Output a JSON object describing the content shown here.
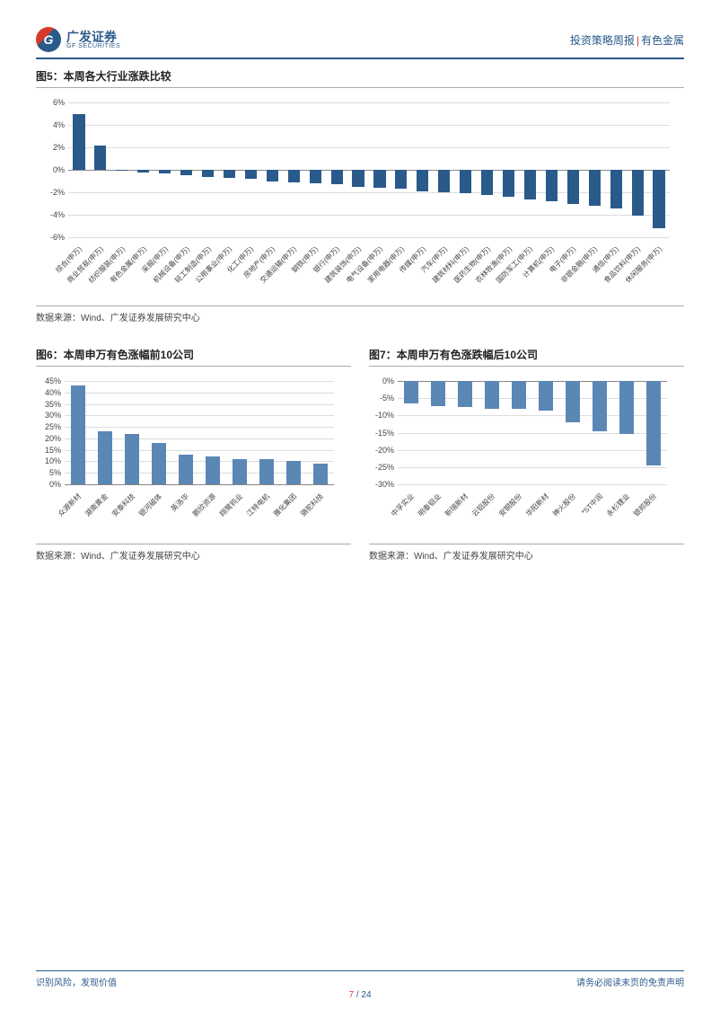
{
  "header": {
    "logo_cn": "广发证券",
    "logo_en": "GF SECURITIES",
    "logo_letter": "G",
    "right_1": "投资策略周报",
    "right_2": "有色金属"
  },
  "chart5": {
    "title": "图5：本周各大行业涨跌比较",
    "type": "bar",
    "ylim": [
      -6,
      6
    ],
    "ytick_step": 2,
    "yticks": [
      "6%",
      "4%",
      "2%",
      "0%",
      "-2%",
      "-4%",
      "-6%"
    ],
    "bar_color": "#2a5a8a",
    "grid_color": "#dddddd",
    "categories": [
      "综合(申万)",
      "商业贸易(申万)",
      "纺织服装(申万)",
      "有色金属(申万)",
      "采掘(申万)",
      "机械设备(申万)",
      "轻工制造(申万)",
      "公用事业(申万)",
      "化工(申万)",
      "房地产(申万)",
      "交通运输(申万)",
      "钢铁(申万)",
      "银行(申万)",
      "建筑装饰(申万)",
      "电气设备(申万)",
      "家用电器(申万)",
      "传媒(申万)",
      "汽车(申万)",
      "建筑材料(申万)",
      "医药生物(申万)",
      "农林牧渔(申万)",
      "国防军工(申万)",
      "计算机(申万)",
      "电子(申万)",
      "非银金融(申万)",
      "通信(申万)",
      "食品饮料(申万)",
      "休闲服务(申万)"
    ],
    "values": [
      5.0,
      2.2,
      -0.1,
      -0.2,
      -0.3,
      -0.5,
      -0.6,
      -0.7,
      -0.8,
      -1.0,
      -1.1,
      -1.2,
      -1.3,
      -1.5,
      -1.6,
      -1.7,
      -1.9,
      -2.0,
      -2.1,
      -2.2,
      -2.4,
      -2.6,
      -2.8,
      -3.0,
      -3.2,
      -3.4,
      -4.1,
      -5.2
    ],
    "source": "数据来源：Wind、广发证券发展研究中心"
  },
  "chart6": {
    "title": "图6：本周申万有色涨幅前10公司",
    "type": "bar",
    "ylim": [
      0,
      45
    ],
    "ytick_step": 5,
    "yticks": [
      "45%",
      "40%",
      "35%",
      "30%",
      "25%",
      "20%",
      "15%",
      "10%",
      "5%",
      "0%"
    ],
    "bar_color": "#5b87b5",
    "grid_color": "#dddddd",
    "categories": [
      "众源新材",
      "湖南黄金",
      "安泰科技",
      "银河磁体",
      "英洛华",
      "鹏欣资源",
      "翔鹭钨业",
      "江特电机",
      "雅化集团",
      "骆驼科技"
    ],
    "values": [
      43,
      23,
      22,
      18,
      13,
      12,
      11,
      11,
      10,
      9
    ],
    "source": "数据来源：Wind、广发证券发展研究中心"
  },
  "chart7": {
    "title": "图7：本周申万有色涨跌幅后10公司",
    "type": "bar",
    "ylim": [
      -30,
      0
    ],
    "ytick_step": 5,
    "yticks": [
      "0%",
      "-5%",
      "-10%",
      "-15%",
      "-20%",
      "-25%",
      "-30%"
    ],
    "bar_color": "#5b87b5",
    "grid_color": "#dddddd",
    "categories": [
      "中孚实业",
      "明泰铝业",
      "新瑞新材",
      "云铝股份",
      "安钢股份",
      "华阳新材",
      "神火股份",
      "*ST中润",
      "永杉锂业",
      "银邦股份"
    ],
    "values": [
      -6.5,
      -7.2,
      -7.5,
      -8.0,
      -8.0,
      -8.5,
      -12.0,
      -14.5,
      -15.5,
      -24.5
    ],
    "source": "数据来源：Wind、广发证券发展研究中心"
  },
  "footer": {
    "left": "识别风险，发现价值",
    "right": "请务必阅读末页的免责声明",
    "page_current": "7",
    "page_sep": " / ",
    "page_total": "24"
  }
}
